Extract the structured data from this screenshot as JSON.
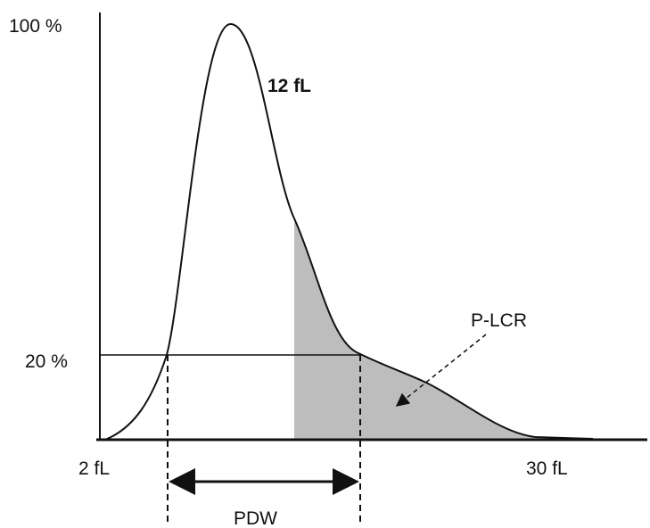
{
  "labels": {
    "y_top": "100 %",
    "peak": "12 fL",
    "y_mark": "20 %",
    "region": "P-LCR",
    "x_start": "2 fL",
    "x_end": "30 fL",
    "width": "PDW"
  }
}
